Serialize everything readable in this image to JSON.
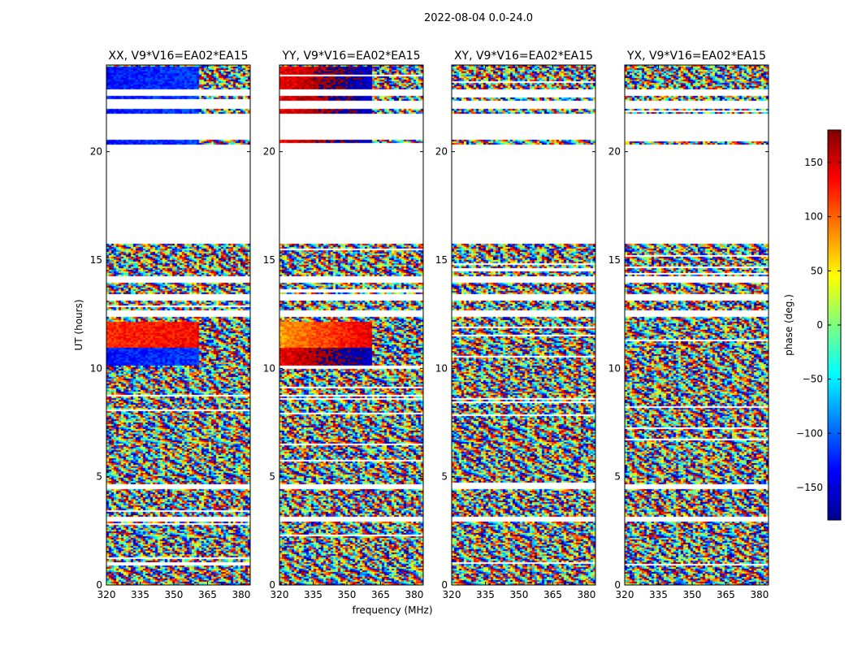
{
  "chart_data": {
    "type": "heatmap",
    "title": "2022-08-04 0.0-24.0",
    "xlabel": "frequency (MHz)",
    "ylabel": "UT (hours)",
    "xlim": [
      320,
      384
    ],
    "ylim": [
      0,
      24
    ],
    "x_ticks": [
      320,
      335,
      350,
      365,
      380
    ],
    "x_tick_labels": [
      "320",
      "335",
      "350",
      "365",
      "380"
    ],
    "y_ticks": [
      0,
      5,
      10,
      15,
      20
    ],
    "y_tick_labels": [
      "0",
      "5",
      "10",
      "15",
      "20"
    ],
    "colorbar": {
      "label": "phase (deg.)",
      "colormap": "jet",
      "range": [
        -180,
        180
      ],
      "ticks": [
        150,
        100,
        50,
        0,
        -50,
        -100,
        -150
      ],
      "tick_labels": [
        "150",
        "100",
        "50",
        "0",
        "−50",
        "−100",
        "−150"
      ]
    },
    "flagged_ut_gaps": [
      [
        15.8,
        17.3
      ],
      [
        17.3,
        20.4
      ],
      [
        20.6,
        21.8
      ],
      [
        22.0,
        22.4
      ],
      [
        22.6,
        22.9
      ],
      [
        14.0,
        14.3
      ],
      [
        13.2,
        13.5
      ],
      [
        12.4,
        12.7
      ],
      [
        3.0,
        3.2
      ],
      [
        4.5,
        4.7
      ]
    ],
    "panels": [
      {
        "name": "XX",
        "title": "XX, V9*V16=EA02*EA15",
        "coherent_phase_deg": -130,
        "fringe_start_mhz": 361
      },
      {
        "name": "YY",
        "title": "YY, V9*V16=EA02*EA15",
        "coherent_phase_deg": 140,
        "fringe_start_mhz": 361
      },
      {
        "name": "XY",
        "title": "XY, V9*V16=EA02*EA15",
        "coherent_phase_deg": null,
        "fringe_start_mhz": null
      },
      {
        "name": "YX",
        "title": "YX, V9*V16=EA02*EA15",
        "coherent_phase_deg": null,
        "fringe_start_mhz": null
      }
    ]
  }
}
